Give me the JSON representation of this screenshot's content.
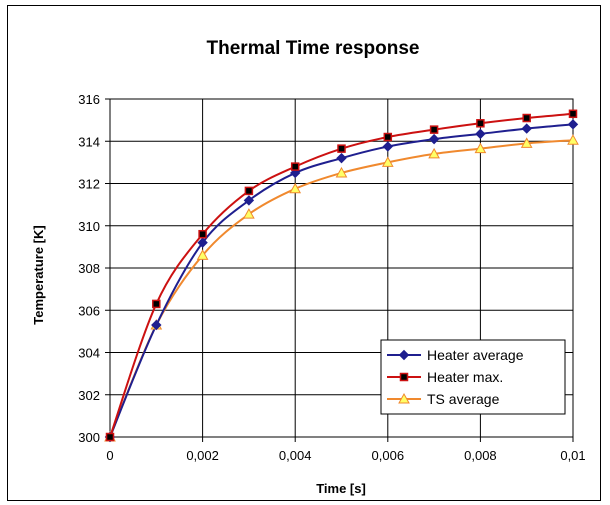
{
  "chart_data": {
    "type": "line",
    "title": "Thermal Time response",
    "xlabel": "Time [s]",
    "ylabel": "Temperature [K]",
    "xlim": [
      0,
      0.01
    ],
    "ylim": [
      300,
      316
    ],
    "xticks": [
      0,
      0.002,
      0.004,
      0.006,
      0.008,
      0.01
    ],
    "xtick_labels": [
      "0",
      "0,002",
      "0,004",
      "0,006",
      "0,008",
      "0,01"
    ],
    "yticks": [
      300,
      302,
      304,
      306,
      308,
      310,
      312,
      314,
      316
    ],
    "ytick_labels": [
      "300",
      "302",
      "304",
      "306",
      "308",
      "310",
      "312",
      "314",
      "316"
    ],
    "grid": true,
    "legend_position": "bottom-right",
    "x": [
      0,
      0.001,
      0.002,
      0.003,
      0.004,
      0.005,
      0.006,
      0.007,
      0.008,
      0.009,
      0.01
    ],
    "series": [
      {
        "name": "Heater average",
        "color": "#1f1f8f",
        "marker": "diamond",
        "values": [
          300.0,
          305.3,
          309.2,
          311.2,
          312.5,
          313.2,
          313.75,
          314.1,
          314.35,
          314.6,
          314.8
        ]
      },
      {
        "name": "Heater max.",
        "color": "#cc1111",
        "marker": "square",
        "values": [
          300.0,
          306.3,
          309.6,
          311.65,
          312.8,
          313.65,
          314.2,
          314.55,
          314.85,
          315.1,
          315.3
        ]
      },
      {
        "name": "TS average",
        "color": "#f0892e",
        "marker": "triangle",
        "values": [
          300.0,
          305.3,
          308.6,
          310.55,
          311.75,
          312.5,
          313.0,
          313.4,
          313.65,
          313.9,
          314.05
        ]
      }
    ]
  }
}
